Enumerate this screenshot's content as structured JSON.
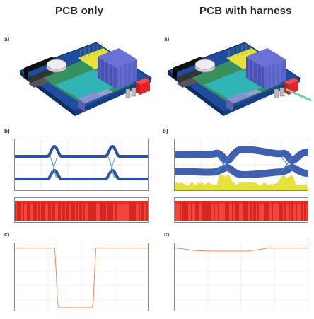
{
  "columns": [
    {
      "title": "PCB only"
    },
    {
      "title": "PCB with harness"
    }
  ],
  "panels": {
    "a": "a)",
    "b": "b)",
    "c": "c)"
  },
  "colors": {
    "board_blue": "#1f4fa8",
    "trace_green": "#4cc04a",
    "heatsink": "#5b63c9",
    "yellow": "#e6e23a",
    "red": "#e0262a",
    "waveform_blue": "#2a4fa6",
    "hist_red": "#e8302a",
    "curve_orange": "#f08a5a"
  },
  "chart_data": [
    {
      "id": "left-b-top",
      "type": "line",
      "description_series": "two blue waveform bands with crossings",
      "x": [
        0,
        20,
        40,
        60,
        80,
        100
      ],
      "band_high": [
        0.78,
        0.78,
        0.78,
        0.78,
        0.78,
        0.78
      ],
      "band_low": [
        0.25,
        0.25,
        0.25,
        0.25,
        0.25,
        0.25
      ],
      "crossings_x": [
        28,
        72
      ],
      "xlim": [
        0,
        100
      ],
      "ylim": [
        0,
        1
      ]
    },
    {
      "id": "left-c",
      "type": "line",
      "x": [
        0,
        30,
        31,
        32,
        33,
        58,
        59,
        60,
        61,
        100
      ],
      "values": [
        0.97,
        0.97,
        0.6,
        0.1,
        0.0,
        0.0,
        0.1,
        0.6,
        0.97,
        0.97
      ],
      "xlim": [
        0,
        100
      ],
      "ylim": [
        0,
        1
      ]
    },
    {
      "id": "right-c",
      "type": "line",
      "x": [
        0,
        5,
        15,
        30,
        55,
        65,
        70,
        80,
        100
      ],
      "values": [
        0.97,
        0.96,
        0.93,
        0.92,
        0.92,
        0.95,
        0.97,
        0.97,
        0.97
      ],
      "xlim": [
        0,
        100
      ],
      "ylim": [
        0,
        1
      ]
    }
  ]
}
